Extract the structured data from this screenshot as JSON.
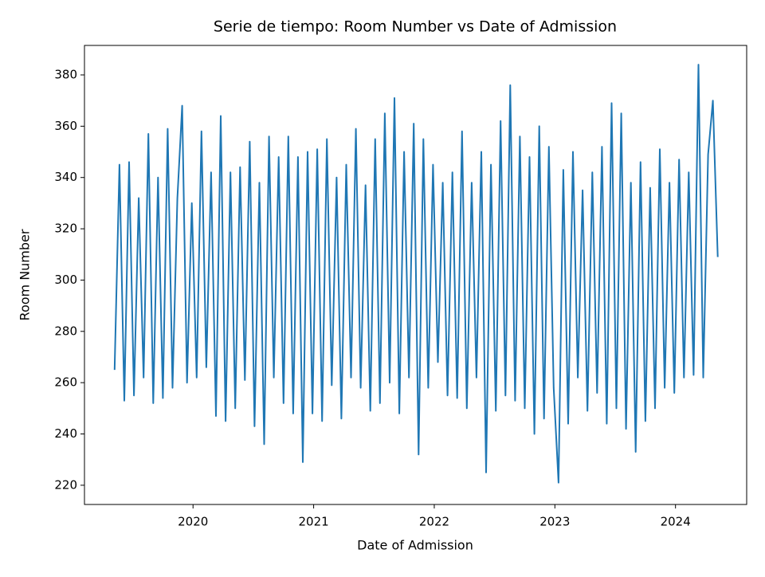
{
  "chart_data": {
    "type": "line",
    "title": "Serie de tiempo: Room Number vs Date of Admission",
    "xlabel": "Date of Admission",
    "ylabel": "Room Number",
    "x": [
      2019.35,
      2019.39,
      2019.43,
      2019.47,
      2019.51,
      2019.55,
      2019.59,
      2019.63,
      2019.67,
      2019.71,
      2019.75,
      2019.79,
      2019.83,
      2019.87,
      2019.91,
      2019.95,
      2019.99,
      2020.03,
      2020.07,
      2020.11,
      2020.15,
      2020.19,
      2020.23,
      2020.27,
      2020.31,
      2020.35,
      2020.39,
      2020.43,
      2020.47,
      2020.51,
      2020.55,
      2020.59,
      2020.63,
      2020.67,
      2020.71,
      2020.75,
      2020.79,
      2020.83,
      2020.87,
      2020.91,
      2020.95,
      2020.99,
      2021.03,
      2021.07,
      2021.11,
      2021.15,
      2021.19,
      2021.23,
      2021.27,
      2021.31,
      2021.35,
      2021.39,
      2021.43,
      2021.47,
      2021.51,
      2021.55,
      2021.59,
      2021.63,
      2021.67,
      2021.71,
      2021.75,
      2021.79,
      2021.83,
      2021.87,
      2021.91,
      2021.95,
      2021.99,
      2022.03,
      2022.07,
      2022.11,
      2022.15,
      2022.19,
      2022.23,
      2022.27,
      2022.31,
      2022.35,
      2022.39,
      2022.43,
      2022.47,
      2022.51,
      2022.55,
      2022.59,
      2022.63,
      2022.67,
      2022.71,
      2022.75,
      2022.79,
      2022.83,
      2022.87,
      2022.91,
      2022.95,
      2022.99,
      2023.03,
      2023.07,
      2023.11,
      2023.15,
      2023.19,
      2023.23,
      2023.27,
      2023.31,
      2023.35,
      2023.39,
      2023.43,
      2023.47,
      2023.51,
      2023.55,
      2023.59,
      2023.63,
      2023.67,
      2023.71,
      2023.75,
      2023.79,
      2023.83,
      2023.87,
      2023.91,
      2023.95,
      2023.99,
      2024.03,
      2024.07,
      2024.11,
      2024.15,
      2024.19,
      2024.23,
      2024.27,
      2024.31,
      2024.35
    ],
    "series": [
      {
        "name": "Room Number",
        "color": "#1f77b4",
        "values": [
          265,
          345,
          253,
          346,
          255,
          332,
          262,
          357,
          252,
          340,
          254,
          359,
          258,
          332,
          368,
          260,
          330,
          262,
          358,
          266,
          342,
          247,
          364,
          245,
          342,
          250,
          344,
          261,
          354,
          243,
          338,
          236,
          356,
          262,
          348,
          252,
          356,
          248,
          348,
          229,
          350,
          248,
          351,
          245,
          355,
          259,
          340,
          246,
          345,
          262,
          359,
          258,
          337,
          249,
          355,
          252,
          365,
          260,
          371,
          248,
          350,
          262,
          361,
          232,
          355,
          258,
          345,
          268,
          338,
          255,
          342,
          254,
          358,
          250,
          338,
          262,
          350,
          225,
          345,
          249,
          362,
          255,
          376,
          253,
          356,
          250,
          348,
          240,
          360,
          246,
          352,
          258,
          221,
          343,
          244,
          350,
          262,
          335,
          249,
          342,
          256,
          352,
          244,
          369,
          250,
          365,
          242,
          338,
          233,
          346,
          245,
          336,
          250,
          351,
          258,
          338,
          256,
          347,
          262,
          342,
          263,
          384,
          262,
          349,
          370,
          309
        ]
      }
    ],
    "xlim": [
      2019.1,
      2024.59
    ],
    "ylim": [
      212.5,
      391.5
    ],
    "xticks": [
      2020,
      2021,
      2022,
      2023,
      2024
    ],
    "yticks": [
      220,
      240,
      260,
      280,
      300,
      320,
      340,
      360,
      380
    ]
  }
}
